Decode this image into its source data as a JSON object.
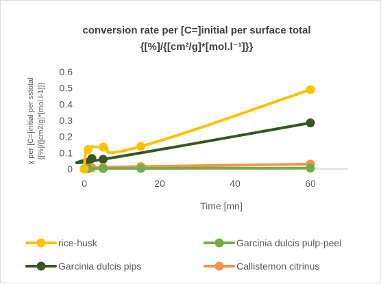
{
  "chart_data": {
    "type": "line",
    "title": {
      "line1": "conversion rate per [C=]initial per surface total",
      "line2": "{[%]/{[cm²/g]*[mol.l⁻¹]}}"
    },
    "xlabel": "Time [mn]",
    "ylabel": {
      "line1": "χ per [C=]initial per sstotal",
      "line2": "{[%]/{[cm2/g]*[mol.l-1]}}"
    },
    "xlim": [
      0,
      70
    ],
    "ylim": [
      0,
      0.6
    ],
    "x_ticks": [
      0,
      20,
      40,
      60
    ],
    "y_ticks": [
      0,
      0.1,
      0.2,
      0.3,
      0.4,
      0.5,
      0.6
    ],
    "grid": false,
    "legend_position": "bottom",
    "series": [
      {
        "name": "rice-husk",
        "color": "#FFC000",
        "x": [
          0,
          1,
          5,
          15,
          60
        ],
        "y": [
          0.0,
          0.12,
          0.135,
          0.14,
          0.49
        ]
      },
      {
        "name": "Garcinia dulcis pulp-peel",
        "color": "#70AD47",
        "x": [
          0,
          1,
          5,
          15,
          60
        ],
        "y": [
          0.0,
          0.002,
          0.003,
          0.004,
          0.005
        ]
      },
      {
        "name": "Garcinia dulcis pips",
        "color": "#375623",
        "x": [
          0,
          1,
          2,
          5,
          60
        ],
        "y": [
          0.0,
          0.04,
          0.065,
          0.06,
          0.285
        ]
      },
      {
        "name": "Callistemon citrinus",
        "color": "#F4944B",
        "x": [
          0,
          1,
          2,
          5,
          15,
          60
        ],
        "y": [
          0.0,
          0.005,
          0.008,
          0.01,
          0.015,
          0.03
        ]
      }
    ]
  }
}
